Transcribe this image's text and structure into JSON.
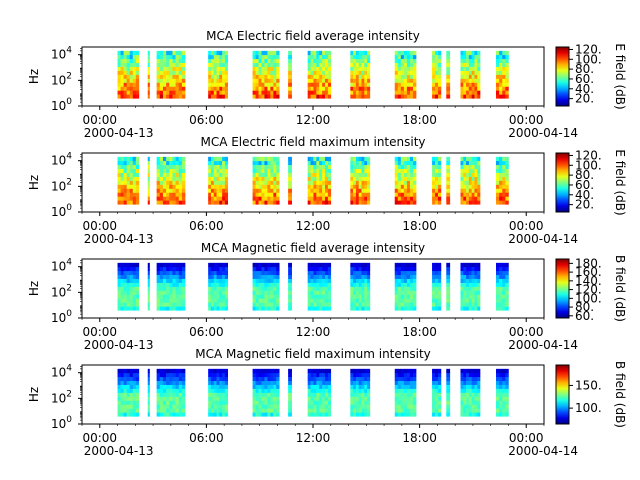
{
  "figure": {
    "background": "#ffffff"
  },
  "chart_data": [
    {
      "type": "heatmap",
      "title": "MCA  Electric field average intensity",
      "ylabel": "Hz",
      "colorbar": {
        "label": "E field (dB)",
        "min": 5,
        "max": 125,
        "ticks": [
          20,
          40,
          60,
          80,
          100,
          120
        ],
        "tick_labels": [
          "20.",
          "40.",
          "60.",
          "80.",
          "100.",
          "120."
        ]
      },
      "field": "E",
      "segments": [
        [
          1.0,
          2.2
        ],
        [
          2.7,
          2.8
        ],
        [
          3.2,
          4.8
        ],
        [
          6.1,
          7.2
        ],
        [
          8.6,
          10.1
        ],
        [
          10.6,
          10.8
        ],
        [
          11.7,
          13.0
        ],
        [
          14.1,
          15.2
        ],
        [
          16.6,
          17.8
        ],
        [
          18.7,
          19.2
        ],
        [
          19.5,
          19.7
        ],
        [
          20.3,
          21.4
        ],
        [
          22.3,
          23.0
        ]
      ]
    },
    {
      "type": "heatmap",
      "title": "MCA  Electric field maximum intensity",
      "ylabel": "Hz",
      "colorbar": {
        "label": "E field (dB)",
        "min": 5,
        "max": 125,
        "ticks": [
          20,
          40,
          60,
          80,
          100,
          120
        ],
        "tick_labels": [
          "20.",
          "40.",
          "60.",
          "80.",
          "100.",
          "120."
        ]
      },
      "field": "E",
      "segments": [
        [
          1.0,
          2.2
        ],
        [
          2.7,
          2.8
        ],
        [
          3.2,
          4.8
        ],
        [
          6.1,
          7.2
        ],
        [
          8.6,
          10.1
        ],
        [
          10.6,
          10.8
        ],
        [
          11.7,
          13.0
        ],
        [
          14.1,
          15.2
        ],
        [
          16.6,
          17.8
        ],
        [
          18.7,
          19.2
        ],
        [
          19.5,
          19.7
        ],
        [
          20.3,
          21.4
        ],
        [
          22.3,
          23.0
        ]
      ]
    },
    {
      "type": "heatmap",
      "title": "MCA  Magnetic field average intensity",
      "ylabel": "Hz",
      "colorbar": {
        "label": "B field (dB)",
        "min": 55,
        "max": 190,
        "ticks": [
          60,
          80,
          100,
          120,
          140,
          160,
          180
        ],
        "tick_labels": [
          "60.",
          "80.",
          "100.",
          "120.",
          "140.",
          "160.",
          "180."
        ]
      },
      "field": "B",
      "segments": [
        [
          1.0,
          2.2
        ],
        [
          2.7,
          2.8
        ],
        [
          3.2,
          4.8
        ],
        [
          6.1,
          7.2
        ],
        [
          8.6,
          10.1
        ],
        [
          10.6,
          10.8
        ],
        [
          11.7,
          13.0
        ],
        [
          14.1,
          15.2
        ],
        [
          16.6,
          17.8
        ],
        [
          18.7,
          19.2
        ],
        [
          19.5,
          19.7
        ],
        [
          20.3,
          21.4
        ],
        [
          22.3,
          23.0
        ]
      ]
    },
    {
      "type": "heatmap",
      "title": "MCA  Magnetic field maximum intensity",
      "ylabel": "Hz",
      "colorbar": {
        "label": "B field (dB)",
        "min": 65,
        "max": 195,
        "ticks": [
          100,
          150
        ],
        "tick_labels": [
          "100.",
          "150."
        ]
      },
      "field": "B",
      "segments": [
        [
          1.0,
          2.2
        ],
        [
          2.7,
          2.8
        ],
        [
          3.2,
          4.8
        ],
        [
          6.1,
          7.2
        ],
        [
          8.6,
          10.1
        ],
        [
          10.6,
          10.8
        ],
        [
          11.7,
          13.0
        ],
        [
          14.1,
          15.2
        ],
        [
          16.6,
          17.8
        ],
        [
          18.7,
          19.2
        ],
        [
          19.5,
          19.7
        ],
        [
          20.3,
          21.4
        ],
        [
          22.3,
          23.0
        ]
      ]
    }
  ],
  "axes": {
    "x_range_hours": [
      -1.0,
      25.0
    ],
    "x_ticks_hours": [
      0,
      6,
      12,
      18,
      24
    ],
    "x_tick_labels": [
      "00:00",
      "06:00",
      "12:00",
      "18:00",
      "00:00"
    ],
    "x_date_left": "2000-04-13",
    "x_date_right": "2000-04-14",
    "y_log_range": [
      0,
      4.6
    ],
    "y_ticks": [
      0,
      2,
      4
    ],
    "y_tick_base": "10",
    "y_tick_exponents": [
      "0",
      "2",
      "4"
    ],
    "y_data_log_range": [
      0.6,
      4.3
    ]
  }
}
